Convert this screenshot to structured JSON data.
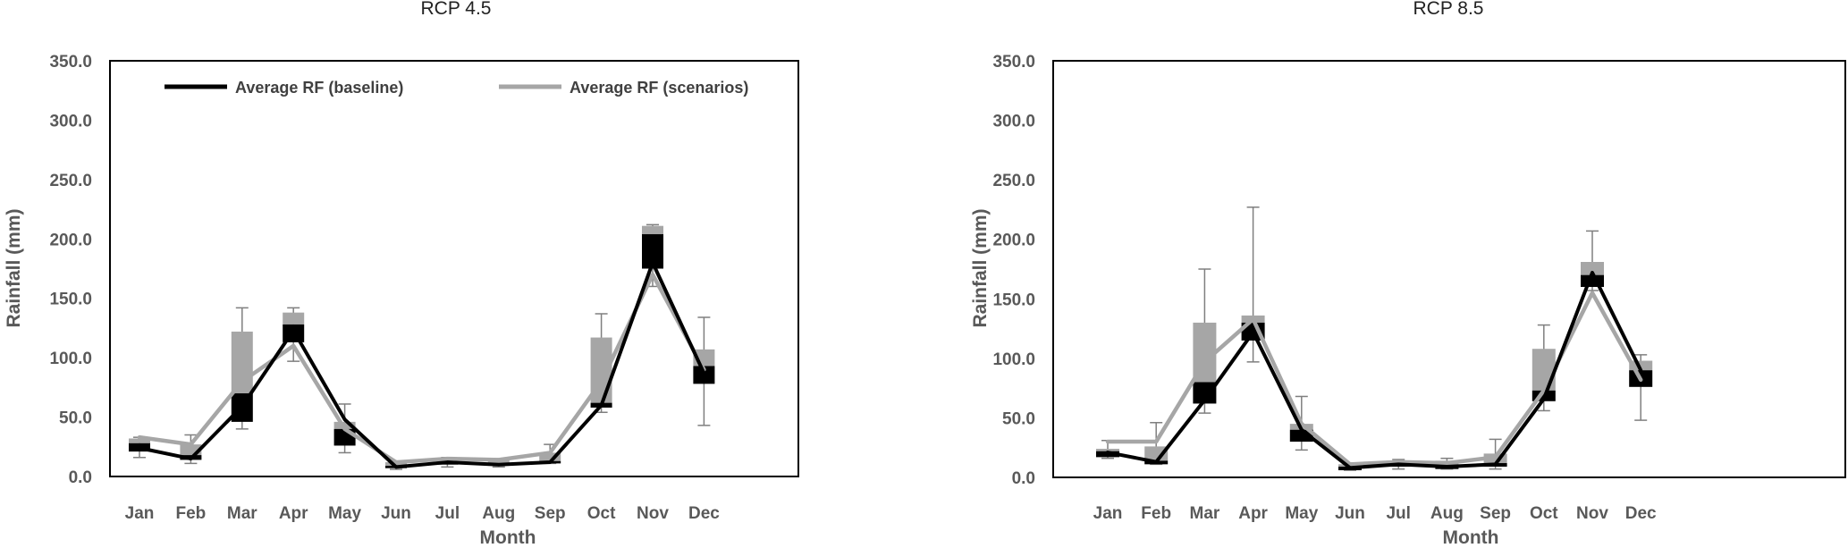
{
  "chart_data": [
    {
      "type": "line",
      "title": "RCP 4.5",
      "xlabel": "Month",
      "ylabel": "Rainfall (mm)",
      "ylim": [
        0,
        350
      ],
      "yticks": [
        "0.0",
        "50.0",
        "100.0",
        "150.0",
        "200.0",
        "250.0",
        "300.0",
        "350.0"
      ],
      "categories": [
        "Jan",
        "Feb",
        "Mar",
        "Apr",
        "May",
        "Jun",
        "Jul",
        "Aug",
        "Sep",
        "Oct",
        "Nov",
        "Dec"
      ],
      "legend": "top-left",
      "grid": false,
      "series": [
        {
          "name": "Average RF (baseline)",
          "color": "#000000",
          "values": [
            24,
            15,
            59,
            123,
            48,
            8,
            12,
            10,
            12,
            60,
            180,
            87
          ]
        },
        {
          "name": "Average RF (scenarios)",
          "color": "#a6a6a6",
          "values": [
            33,
            27,
            80,
            110,
            40,
            12,
            15,
            14,
            20,
            80,
            170,
            90
          ]
        }
      ],
      "boxes": [
        {
          "black": [
            21,
            28
          ],
          "gray": [
            28,
            32
          ],
          "whisker": [
            16,
            33
          ]
        },
        {
          "black": [
            14,
            18
          ],
          "gray": [
            18,
            27
          ],
          "whisker": [
            11,
            35
          ]
        },
        {
          "black": [
            46,
            70
          ],
          "gray": [
            70,
            122
          ],
          "whisker": [
            40,
            142
          ]
        },
        {
          "black": [
            113,
            128
          ],
          "gray": [
            128,
            138
          ],
          "whisker": [
            97,
            142
          ]
        },
        {
          "black": [
            26,
            40
          ],
          "gray": [
            40,
            46
          ],
          "whisker": [
            20,
            61
          ]
        },
        {
          "black": [
            7,
            9
          ],
          "gray": [
            9,
            12
          ],
          "whisker": [
            6,
            13
          ]
        },
        {
          "black": [
            10,
            12
          ],
          "gray": [
            12,
            15
          ],
          "whisker": [
            8,
            16
          ]
        },
        {
          "black": [
            9,
            11
          ],
          "gray": [
            11,
            14
          ],
          "whisker": [
            8,
            15
          ]
        },
        {
          "black": [
            11,
            13
          ],
          "gray": [
            13,
            20
          ],
          "whisker": [
            11,
            27
          ]
        },
        {
          "black": [
            58,
            62
          ],
          "gray": [
            62,
            117
          ],
          "whisker": [
            54,
            137
          ]
        },
        {
          "black": [
            175,
            204
          ],
          "gray": [
            204,
            211
          ],
          "whisker": [
            160,
            212
          ]
        },
        {
          "black": [
            78,
            93
          ],
          "gray": [
            93,
            107
          ],
          "whisker": [
            43,
            134
          ]
        }
      ]
    },
    {
      "type": "line",
      "title": "RCP 8.5",
      "xlabel": "Month",
      "ylabel": "Rainfall (mm)",
      "ylim": [
        0,
        350
      ],
      "yticks": [
        "0.0",
        "50.0",
        "100.0",
        "150.0",
        "200.0",
        "250.0",
        "300.0",
        "350.0"
      ],
      "categories": [
        "Jan",
        "Feb",
        "Mar",
        "Apr",
        "May",
        "Jun",
        "Jul",
        "Aug",
        "Sep",
        "Oct",
        "Nov",
        "Dec"
      ],
      "grid": false,
      "series": [
        {
          "color": "#000000",
          "values": [
            21,
            13,
            65,
            122,
            40,
            8,
            11,
            9,
            11,
            66,
            172,
            90
          ]
        },
        {
          "color": "#a6a6a6",
          "values": [
            30,
            30,
            97,
            133,
            45,
            11,
            13,
            12,
            17,
            73,
            155,
            82
          ]
        }
      ],
      "boxes": [
        {
          "black": [
            17,
            22
          ],
          "gray": [
            22,
            24
          ],
          "whisker": [
            16,
            31
          ]
        },
        {
          "black": [
            11,
            14
          ],
          "gray": [
            14,
            26
          ],
          "whisker": [
            11,
            46
          ]
        },
        {
          "black": [
            62,
            80
          ],
          "gray": [
            80,
            130
          ],
          "whisker": [
            54,
            175
          ]
        },
        {
          "black": [
            115,
            130
          ],
          "gray": [
            130,
            136
          ],
          "whisker": [
            97,
            227
          ]
        },
        {
          "black": [
            30,
            40
          ],
          "gray": [
            40,
            45
          ],
          "whisker": [
            23,
            68
          ]
        },
        {
          "black": [
            6,
            9
          ],
          "gray": [
            9,
            11
          ],
          "whisker": [
            6,
            12
          ]
        },
        {
          "black": [
            9,
            11
          ],
          "gray": [
            11,
            14
          ],
          "whisker": [
            7,
            15
          ]
        },
        {
          "black": [
            7,
            10
          ],
          "gray": [
            10,
            14
          ],
          "whisker": [
            7,
            16
          ]
        },
        {
          "black": [
            9,
            12
          ],
          "gray": [
            12,
            20
          ],
          "whisker": [
            7,
            32
          ]
        },
        {
          "black": [
            64,
            73
          ],
          "gray": [
            73,
            108
          ],
          "whisker": [
            56,
            128
          ]
        },
        {
          "black": [
            160,
            170
          ],
          "gray": [
            170,
            181
          ],
          "whisker": [
            157,
            207
          ]
        },
        {
          "black": [
            76,
            90
          ],
          "gray": [
            90,
            98
          ],
          "whisker": [
            48,
            103
          ]
        }
      ]
    }
  ]
}
